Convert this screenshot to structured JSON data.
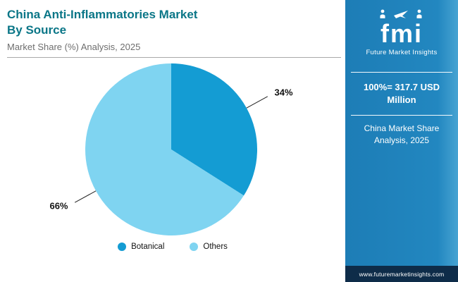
{
  "header": {
    "title_line1": "China Anti-Inflammatories Market",
    "title_line2": "By Source",
    "subtitle": "Market Share (%) Analysis, 2025"
  },
  "chart_data": {
    "type": "pie",
    "title": "China Anti-Inflammatories Market By Source - Market Share (%) Analysis, 2025",
    "total_note": "100%= 317.7 USD Million",
    "legend_position": "bottom",
    "start_angle_deg": 0,
    "slices": [
      {
        "label": "Botanical",
        "value": 34,
        "pct_label": "34%",
        "color": "#149cd3"
      },
      {
        "label": "Others",
        "value": 66,
        "pct_label": "66%",
        "color": "#7fd4f1"
      }
    ]
  },
  "sidebar": {
    "logo_text": "fmi",
    "logo_subtext": "Future Market Insights",
    "stat_line1": "100%= 317.7 USD",
    "stat_line2": "Million",
    "caption_line1": "China Market Share",
    "caption_line2": "Analysis, 2025",
    "footer_url": "www.futuremarketinsights.com",
    "colors": {
      "bg": "#2287c0",
      "footer_bg": "#0e2c49",
      "accent_title": "#0a7687"
    }
  }
}
